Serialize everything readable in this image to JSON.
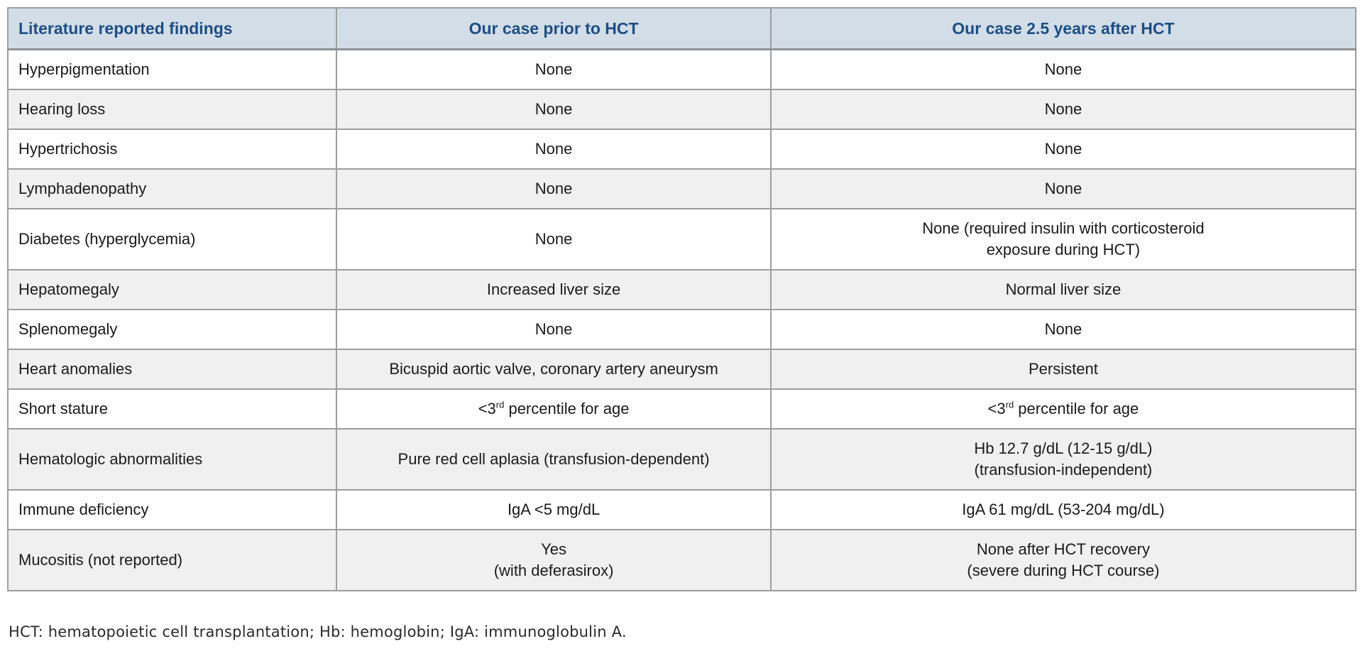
{
  "table": {
    "columns": [
      "Literature reported findings",
      "Our case prior to HCT",
      "Our case 2.5 years after HCT"
    ],
    "rows": [
      {
        "cells": [
          "Hyperpigmentation",
          "None",
          "None"
        ]
      },
      {
        "cells": [
          "Hearing loss",
          "None",
          "None"
        ]
      },
      {
        "cells": [
          "Hypertrichosis",
          "None",
          "None"
        ]
      },
      {
        "cells": [
          "Lymphadenopathy",
          "None",
          "None"
        ]
      },
      {
        "cells": [
          "Diabetes (hyperglycemia)",
          "None",
          {
            "lines": [
              "None (required insulin with corticosteroid",
              "exposure during HCT)"
            ]
          }
        ]
      },
      {
        "cells": [
          "Hepatomegaly",
          "Increased liver size",
          "Normal liver size"
        ]
      },
      {
        "cells": [
          "Splenomegaly",
          "None",
          "None"
        ]
      },
      {
        "cells": [
          "Heart anomalies",
          "Bicuspid aortic valve, coronary artery aneurysm",
          "Persistent"
        ]
      },
      {
        "cells": [
          "Short stature",
          {
            "pre": "<3",
            "sup": "rd",
            "post": " percentile for age"
          },
          {
            "pre": "<3",
            "sup": "rd",
            "post": " percentile for age"
          }
        ]
      },
      {
        "cells": [
          "Hematologic abnormalities",
          "Pure red cell aplasia (transfusion-dependent)",
          {
            "lines": [
              "Hb 12.7 g/dL (12-15 g/dL)",
              "(transfusion-independent)"
            ]
          }
        ]
      },
      {
        "cells": [
          "Immune deficiency",
          "IgA <5 mg/dL",
          "IgA 61 mg/dL (53-204 mg/dL)"
        ]
      },
      {
        "cells": [
          "Mucositis (not reported)",
          {
            "lines": [
              "Yes",
              "(with deferasirox)"
            ]
          },
          {
            "lines": [
              "None after HCT recovery",
              "(severe during HCT course)"
            ]
          }
        ]
      }
    ]
  },
  "footnote": "HCT: hematopoietic cell transplantation; Hb: hemoglobin; IgA: immunoglobulin A.",
  "colors": {
    "header_background": "#d2dde7",
    "header_text": "#1d4e84",
    "row_alt_background": "#f0f0f0",
    "border": "#9c9ea0",
    "body_text": "#1b1b1b"
  }
}
